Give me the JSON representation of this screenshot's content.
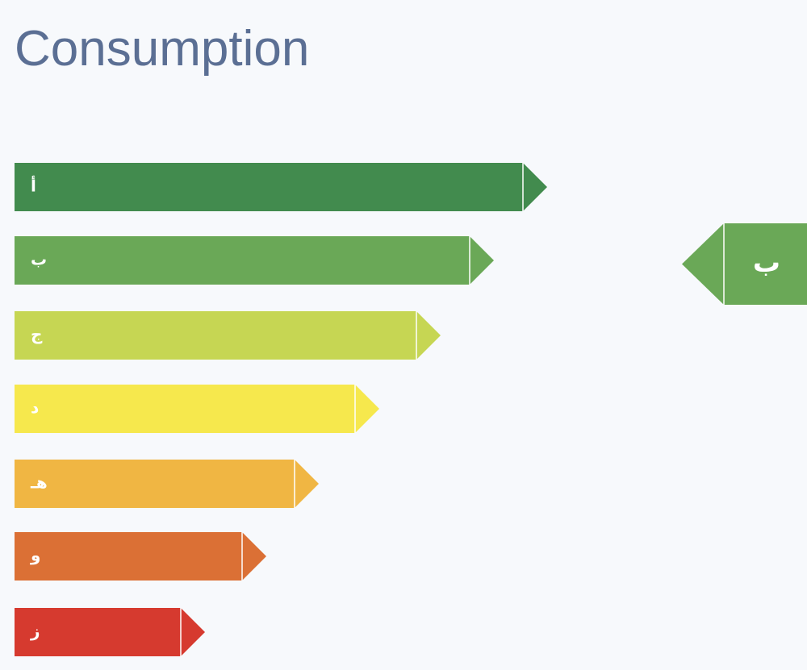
{
  "header": {
    "title": "Consumption"
  },
  "ratings": [
    {
      "label": "أ",
      "color": "#428b4e"
    },
    {
      "label": "ب",
      "color": "#6aa857"
    },
    {
      "label": "ج",
      "color": "#c6d653"
    },
    {
      "label": "د",
      "color": "#f6e84d"
    },
    {
      "label": "هـ",
      "color": "#f0b643"
    },
    {
      "label": "و",
      "color": "#db7035"
    },
    {
      "label": "ز",
      "color": "#d63a2f"
    }
  ],
  "selected": {
    "label": "ب",
    "color": "#6aa857"
  }
}
